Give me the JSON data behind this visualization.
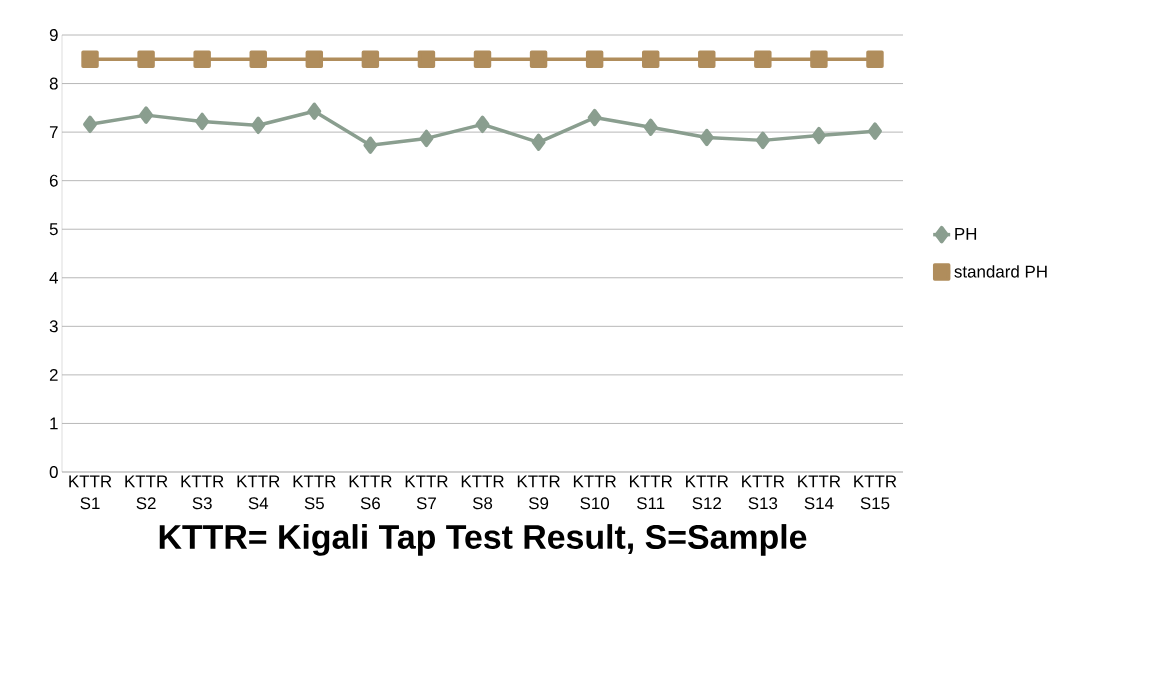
{
  "chart_data": {
    "type": "line",
    "xlabel": "KTTR= Kigali Tap Test Result, S=Sample",
    "categories": [
      "KTTR S1",
      "KTTR S2",
      "KTTR S3",
      "KTTR S4",
      "KTTR S5",
      "KTTR S6",
      "KTTR S7",
      "KTTR S8",
      "KTTR S9",
      "KTTR S10",
      "KTTR S11",
      "KTTR S12",
      "KTTR S13",
      "KTTR S14",
      "KTTR S15"
    ],
    "series": [
      {
        "name": "PH",
        "color": "#8a9e8f",
        "marker": "diamond",
        "values": [
          7.16,
          7.35,
          7.22,
          7.14,
          7.43,
          6.73,
          6.87,
          7.16,
          6.79,
          7.3,
          7.1,
          6.89,
          6.83,
          6.93,
          7.02
        ]
      },
      {
        "name": "standard PH",
        "color": "#b08d5c",
        "marker": "square",
        "values": [
          8.5,
          8.5,
          8.5,
          8.5,
          8.5,
          8.5,
          8.5,
          8.5,
          8.5,
          8.5,
          8.5,
          8.5,
          8.5,
          8.5,
          8.5
        ]
      }
    ],
    "ylim": [
      0,
      9
    ],
    "yticks": [
      0,
      1,
      2,
      3,
      4,
      5,
      6,
      7,
      8,
      9
    ],
    "grid": "y",
    "legend": "right"
  }
}
